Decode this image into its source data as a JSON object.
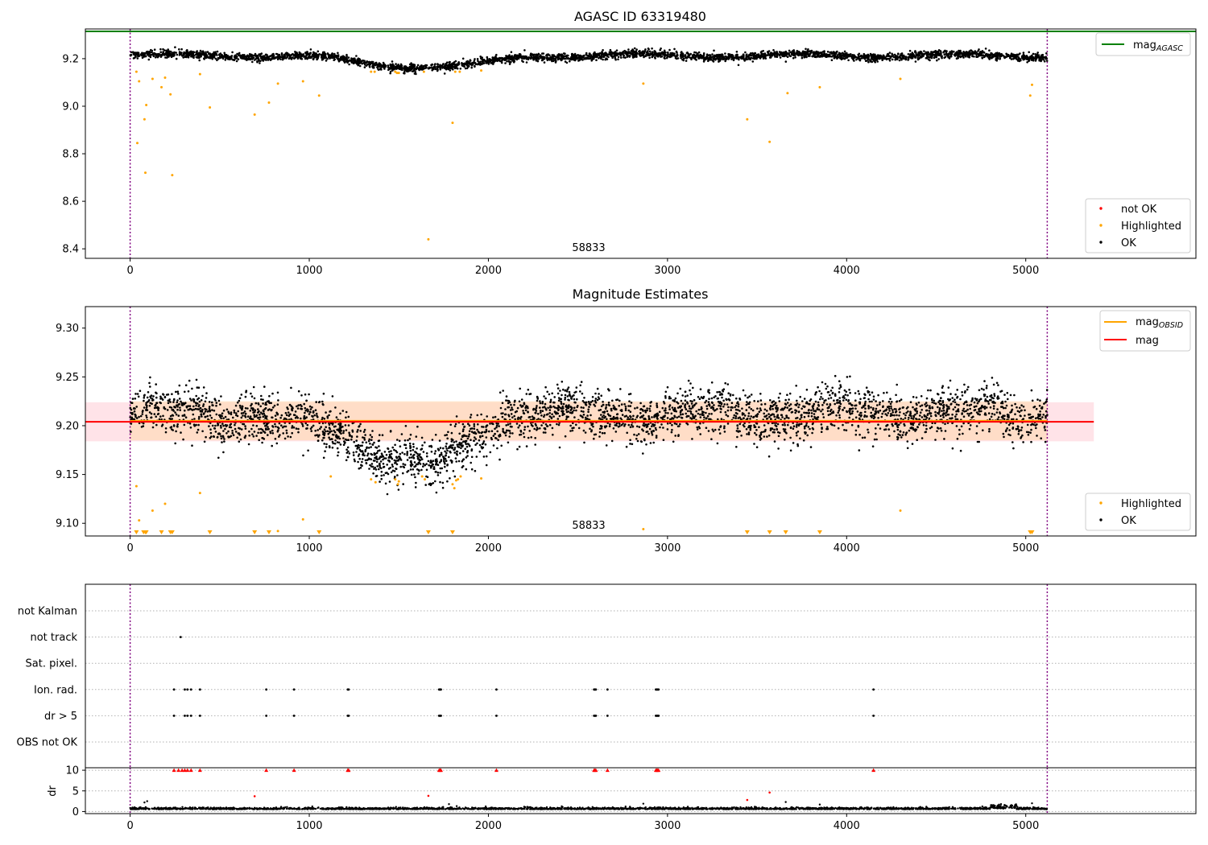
{
  "colors": {
    "ok": "#000000",
    "highlighted": "#ffa500",
    "not_ok": "#ff0000",
    "agasc_line": "#008000",
    "obsid_line": "#ffa500",
    "mag_line": "#ff0000",
    "obs_boundary": "#800080",
    "band_fill": "#ffc0cb",
    "band_fill_inner": "#ffdab9",
    "grid": "#b0b0b0"
  },
  "chart_data": [
    {
      "id": "panel1",
      "type": "scatter",
      "title": "AGASC ID 63319480",
      "xlim": [
        -250,
        5950
      ],
      "ylim": [
        8.36,
        9.325
      ],
      "x_ticks": [
        0,
        1000,
        2000,
        3000,
        4000,
        5000
      ],
      "y_ticks": [
        8.4,
        8.6,
        8.8,
        9.0,
        9.2
      ],
      "y_tick_labels": [
        "8.4",
        "8.6",
        "8.8",
        "9.0",
        "9.2"
      ],
      "annotation": "58833",
      "obs_boundaries": [
        0,
        5120
      ],
      "mag_agasc": 9.315,
      "legend_upper": {
        "position": "upper-right",
        "entries": [
          {
            "label": "mag",
            "subscript": "AGASC",
            "kind": "line",
            "color_key": "agasc_line"
          }
        ]
      },
      "legend_lower": {
        "position": "lower-right",
        "entries": [
          {
            "label": "not OK",
            "kind": "marker",
            "color_key": "not_ok"
          },
          {
            "label": "Highlighted",
            "kind": "marker",
            "color_key": "highlighted"
          },
          {
            "label": "OK",
            "kind": "marker",
            "color_key": "ok"
          }
        ]
      },
      "series": [
        {
          "name": "OK",
          "model": "ok_trend_agasc",
          "n_points": 3600,
          "x_range": [
            0,
            5120
          ],
          "scatter": 0.008
        },
        {
          "name": "Highlighted",
          "points": [
            [
              35,
              9.145
            ],
            [
              40,
              8.845
            ],
            [
              50,
              9.105
            ],
            [
              80,
              8.945
            ],
            [
              85,
              8.72
            ],
            [
              90,
              9.005
            ],
            [
              125,
              9.115
            ],
            [
              175,
              9.08
            ],
            [
              195,
              9.12
            ],
            [
              225,
              9.05
            ],
            [
              235,
              8.71
            ],
            [
              390,
              9.135
            ],
            [
              445,
              8.995
            ],
            [
              695,
              8.965
            ],
            [
              775,
              9.015
            ],
            [
              825,
              9.095
            ],
            [
              965,
              9.105
            ],
            [
              1055,
              9.045
            ],
            [
              1345,
              9.145
            ],
            [
              1365,
              9.145
            ],
            [
              1480,
              9.145
            ],
            [
              1490,
              9.14
            ],
            [
              1500,
              9.14
            ],
            [
              1640,
              9.145
            ],
            [
              1665,
              8.44
            ],
            [
              1800,
              8.93
            ],
            [
              1815,
              9.145
            ],
            [
              1840,
              9.145
            ],
            [
              1960,
              9.15
            ],
            [
              2865,
              9.095
            ],
            [
              3445,
              8.945
            ],
            [
              3570,
              8.85
            ],
            [
              3670,
              9.055
            ],
            [
              3850,
              9.08
            ],
            [
              4300,
              9.115
            ],
            [
              5025,
              9.045
            ],
            [
              5035,
              9.09
            ]
          ]
        }
      ]
    },
    {
      "id": "panel2",
      "type": "scatter",
      "title": "Magnitude Estimates",
      "xlim": [
        -250,
        5950
      ],
      "ylim": [
        9.087,
        9.322
      ],
      "x_ticks": [
        0,
        1000,
        2000,
        3000,
        4000,
        5000
      ],
      "y_ticks": [
        9.1,
        9.15,
        9.2,
        9.25,
        9.3
      ],
      "y_tick_labels": [
        "9.10",
        "9.15",
        "9.20",
        "9.25",
        "9.30"
      ],
      "annotation": "58833",
      "obs_boundaries": [
        0,
        5120
      ],
      "mag": 9.204,
      "mag_band": [
        9.184,
        9.224
      ],
      "mag_band_xrange": [
        -250,
        5380
      ],
      "mag_obsid": 9.205,
      "mag_obsid_band": [
        9.185,
        9.225
      ],
      "mag_obsid_xrange": [
        0,
        5120
      ],
      "legend_upper": {
        "position": "upper-right",
        "entries": [
          {
            "label": "mag",
            "subscript": "OBSID",
            "kind": "line",
            "color_key": "obsid_line"
          },
          {
            "label": "mag",
            "kind": "line",
            "color_key": "mag_line"
          }
        ]
      },
      "legend_lower": {
        "position": "lower-right",
        "entries": [
          {
            "label": "Highlighted",
            "kind": "marker",
            "color_key": "highlighted"
          },
          {
            "label": "OK",
            "kind": "marker",
            "color_key": "ok"
          }
        ]
      },
      "series": [
        {
          "name": "OK",
          "model": "ok_trend_obsid",
          "n_points": 3600,
          "x_range": [
            0,
            5120
          ],
          "scatter": 0.012
        },
        {
          "name": "Highlighted",
          "points": [
            [
              35,
              9.138
            ],
            [
              50,
              9.103
            ],
            [
              125,
              9.113
            ],
            [
              195,
              9.12
            ],
            [
              390,
              9.131
            ],
            [
              825,
              9.092
            ],
            [
              965,
              9.104
            ],
            [
              1120,
              9.148
            ],
            [
              1345,
              9.145
            ],
            [
              1370,
              9.142
            ],
            [
              1480,
              9.145
            ],
            [
              1495,
              9.14
            ],
            [
              1500,
              9.143
            ],
            [
              1630,
              9.148
            ],
            [
              1645,
              9.145
            ],
            [
              1800,
              9.14
            ],
            [
              1810,
              9.136
            ],
            [
              1820,
              9.144
            ],
            [
              1830,
              9.145
            ],
            [
              1845,
              9.148
            ],
            [
              1960,
              9.146
            ],
            [
              2865,
              9.094
            ],
            [
              4300,
              9.113
            ]
          ]
        },
        {
          "name": "Highlighted (off-scale)",
          "x": [
            35,
            75,
            85,
            90,
            175,
            225,
            235,
            445,
            695,
            775,
            1055,
            1665,
            1800,
            3445,
            3570,
            3660,
            3850,
            5025,
            5035
          ]
        }
      ]
    },
    {
      "id": "panel3",
      "type": "scatter",
      "title": "",
      "xlim": [
        -250,
        5950
      ],
      "x_ticks": [
        0,
        1000,
        2000,
        3000,
        4000,
        5000
      ],
      "obs_boundaries": [
        0,
        5120
      ],
      "flag_rows": [
        "not Kalman",
        "not track",
        "Sat. pixel.",
        "Ion. rad.",
        "dr > 5",
        "OBS not OK"
      ],
      "flag_points": {
        "not track": [
          282
        ],
        "Ion. rad.": [
          245,
          305,
          320,
          340,
          390,
          760,
          915,
          1215,
          1220,
          1725,
          1730,
          1735,
          2045,
          2590,
          2595,
          2600,
          2665,
          2935,
          2940,
          2945,
          2950,
          4150
        ],
        "dr > 5": [
          245,
          305,
          320,
          340,
          390,
          760,
          915,
          1215,
          1220,
          1725,
          1730,
          1735,
          2045,
          2590,
          2595,
          2600,
          2665,
          2935,
          2940,
          2945,
          2950,
          4150
        ]
      },
      "dr_ylim": [
        -0.5,
        10.6
      ],
      "dr_ticks": [
        0,
        5,
        10
      ],
      "dr_ylabel": "dr",
      "dr_capped_value": 10,
      "dr_capped_x": [
        245,
        270,
        290,
        305,
        320,
        340,
        390,
        760,
        915,
        1215,
        1220,
        1725,
        1730,
        1735,
        2045,
        2590,
        2595,
        2600,
        2665,
        2935,
        2940,
        2945,
        2950,
        4150
      ],
      "dr_red_points": [
        [
          695,
          3.7
        ],
        [
          1665,
          3.8
        ],
        [
          3445,
          2.8
        ],
        [
          3570,
          4.6
        ]
      ],
      "dr_baseline": {
        "mean": 0.55,
        "scatter": 0.25,
        "n_points": 2600,
        "x_range": [
          0,
          5120
        ]
      },
      "dr_outliers": [
        [
          80,
          2.2
        ],
        [
          95,
          2.5
        ],
        [
          1780,
          1.8
        ],
        [
          2865,
          1.9
        ],
        [
          3660,
          2.3
        ],
        [
          3850,
          1.7
        ],
        [
          5035,
          2.0
        ]
      ]
    }
  ]
}
